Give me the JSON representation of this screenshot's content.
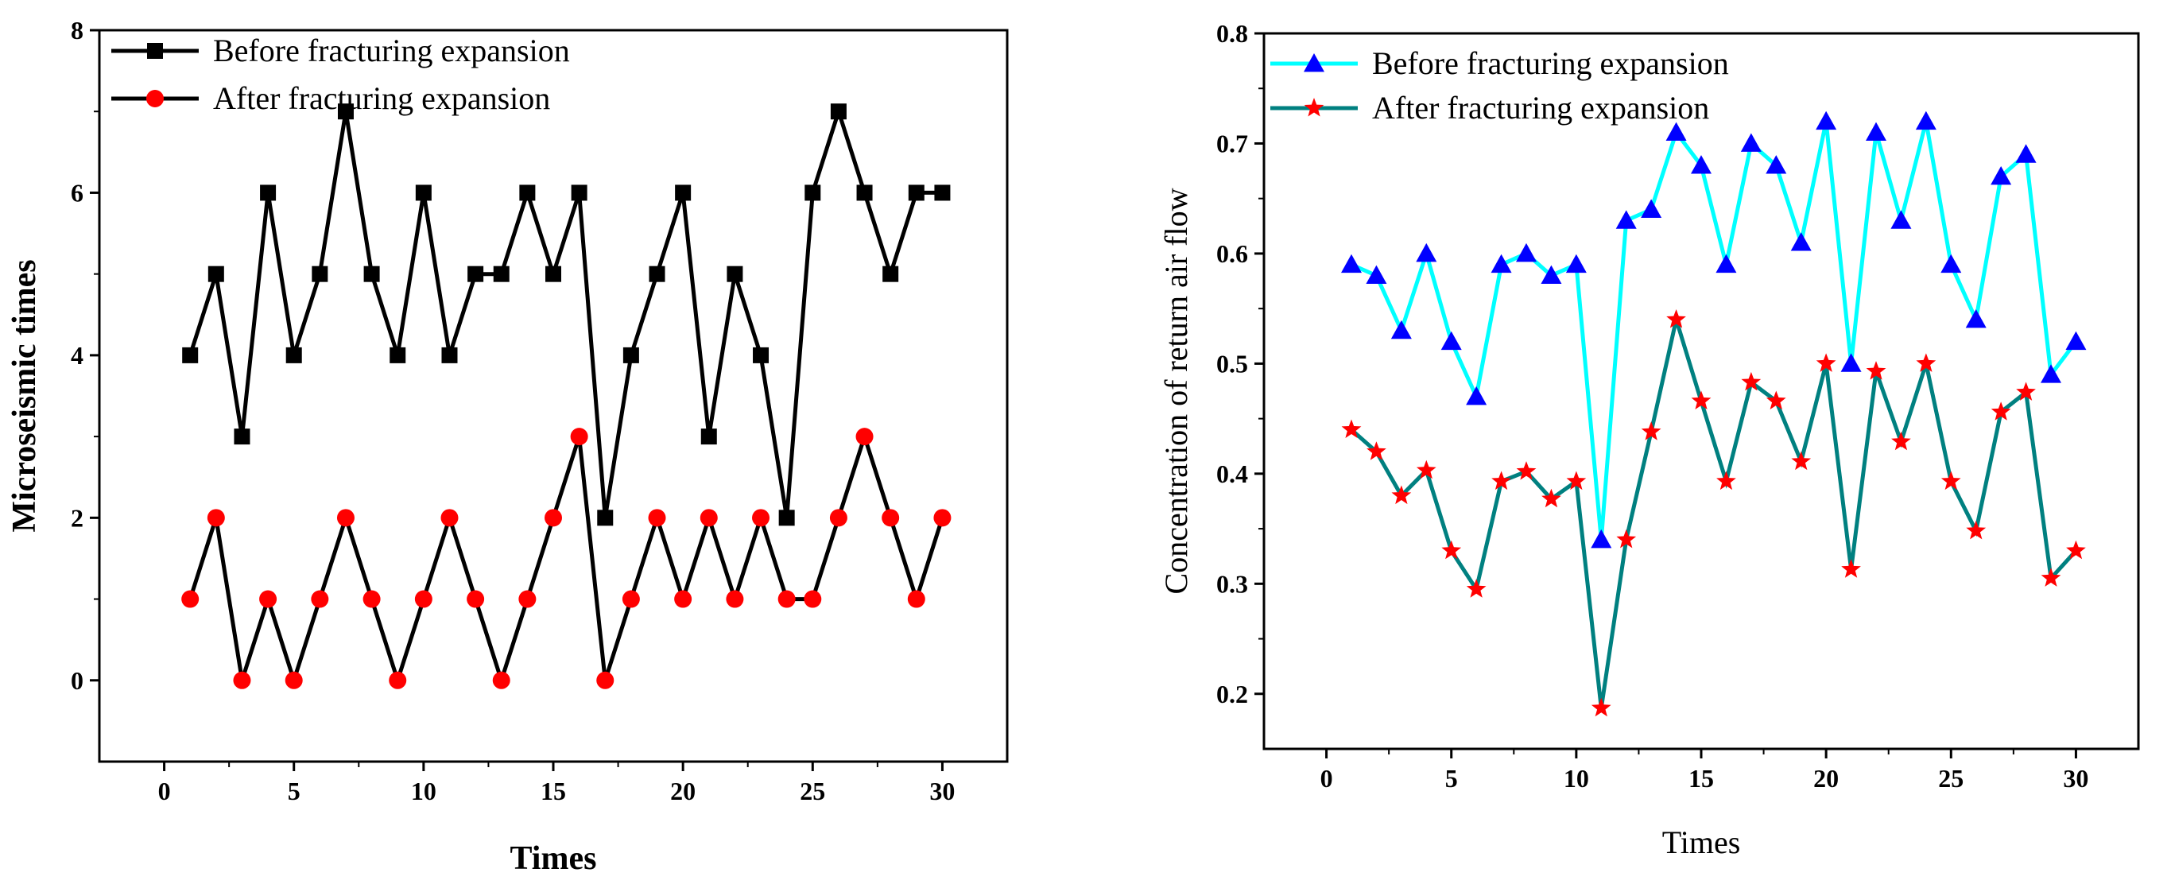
{
  "chart_data": [
    {
      "type": "line",
      "title": "",
      "xlabel": "Times",
      "ylabel": "Microseismic times",
      "xlim": [
        -2.5,
        32.5
      ],
      "ylim": [
        -1,
        8
      ],
      "xticks": [
        0,
        5,
        10,
        15,
        20,
        25,
        30
      ],
      "yticks": [
        0,
        2,
        4,
        6,
        8
      ],
      "legend_position": "top-left",
      "x": [
        1,
        2,
        3,
        4,
        5,
        6,
        7,
        8,
        9,
        10,
        11,
        12,
        13,
        14,
        15,
        16,
        17,
        18,
        19,
        20,
        21,
        22,
        23,
        24,
        25,
        26,
        27,
        28,
        29,
        30
      ],
      "series": [
        {
          "name": "Before fracturing expansion",
          "line_color": "#000000",
          "marker_color": "#000000",
          "marker": "square",
          "values": [
            4,
            5,
            3,
            6,
            4,
            5,
            7,
            5,
            4,
            6,
            4,
            5,
            5,
            6,
            5,
            6,
            2,
            4,
            5,
            6,
            3,
            5,
            4,
            2,
            6,
            7,
            6,
            5,
            6,
            6
          ]
        },
        {
          "name": "After fracturing expansion",
          "line_color": "#000000",
          "marker_color": "#ff0000",
          "marker": "circle",
          "values": [
            1,
            2,
            0,
            1,
            0,
            1,
            2,
            1,
            0,
            1,
            2,
            1,
            0,
            1,
            2,
            3,
            0,
            1,
            2,
            1,
            2,
            1,
            2,
            1,
            1,
            2,
            3,
            2,
            1,
            2
          ]
        }
      ]
    },
    {
      "type": "line",
      "title": "",
      "xlabel": "Times",
      "ylabel": "Concentration of return air flow",
      "xlim": [
        -2.5,
        32.5
      ],
      "ylim": [
        0.15,
        0.8
      ],
      "xticks": [
        0,
        5,
        10,
        15,
        20,
        25,
        30
      ],
      "yticks": [
        0.2,
        0.3,
        0.4,
        0.5,
        0.6,
        0.7,
        0.8
      ],
      "legend_position": "top-left",
      "x": [
        1,
        2,
        3,
        4,
        5,
        6,
        7,
        8,
        9,
        10,
        11,
        12,
        13,
        14,
        15,
        16,
        17,
        18,
        19,
        20,
        21,
        22,
        23,
        24,
        25,
        26,
        27,
        28,
        29,
        30
      ],
      "series": [
        {
          "name": "Before fracturing expansion",
          "line_color": "#00ffff",
          "marker_color": "#0000ff",
          "marker": "triangle",
          "values": [
            0.59,
            0.58,
            0.53,
            0.6,
            0.52,
            0.47,
            0.59,
            0.6,
            0.58,
            0.59,
            0.34,
            0.63,
            0.64,
            0.71,
            0.68,
            0.59,
            0.7,
            0.68,
            0.61,
            0.72,
            0.5,
            0.71,
            0.63,
            0.72,
            0.59,
            0.54,
            0.67,
            0.69,
            0.49,
            0.52
          ]
        },
        {
          "name": "After fracturing expansion",
          "line_color": "#008080",
          "marker_color": "#ff0000",
          "marker": "star",
          "values": [
            0.44,
            0.42,
            0.38,
            0.403,
            0.33,
            0.295,
            0.393,
            0.402,
            0.377,
            0.393,
            0.187,
            0.34,
            0.438,
            0.54,
            0.466,
            0.393,
            0.483,
            0.466,
            0.411,
            0.5,
            0.313,
            0.493,
            0.429,
            0.5,
            0.393,
            0.348,
            0.456,
            0.474,
            0.305,
            0.33
          ]
        }
      ]
    }
  ]
}
